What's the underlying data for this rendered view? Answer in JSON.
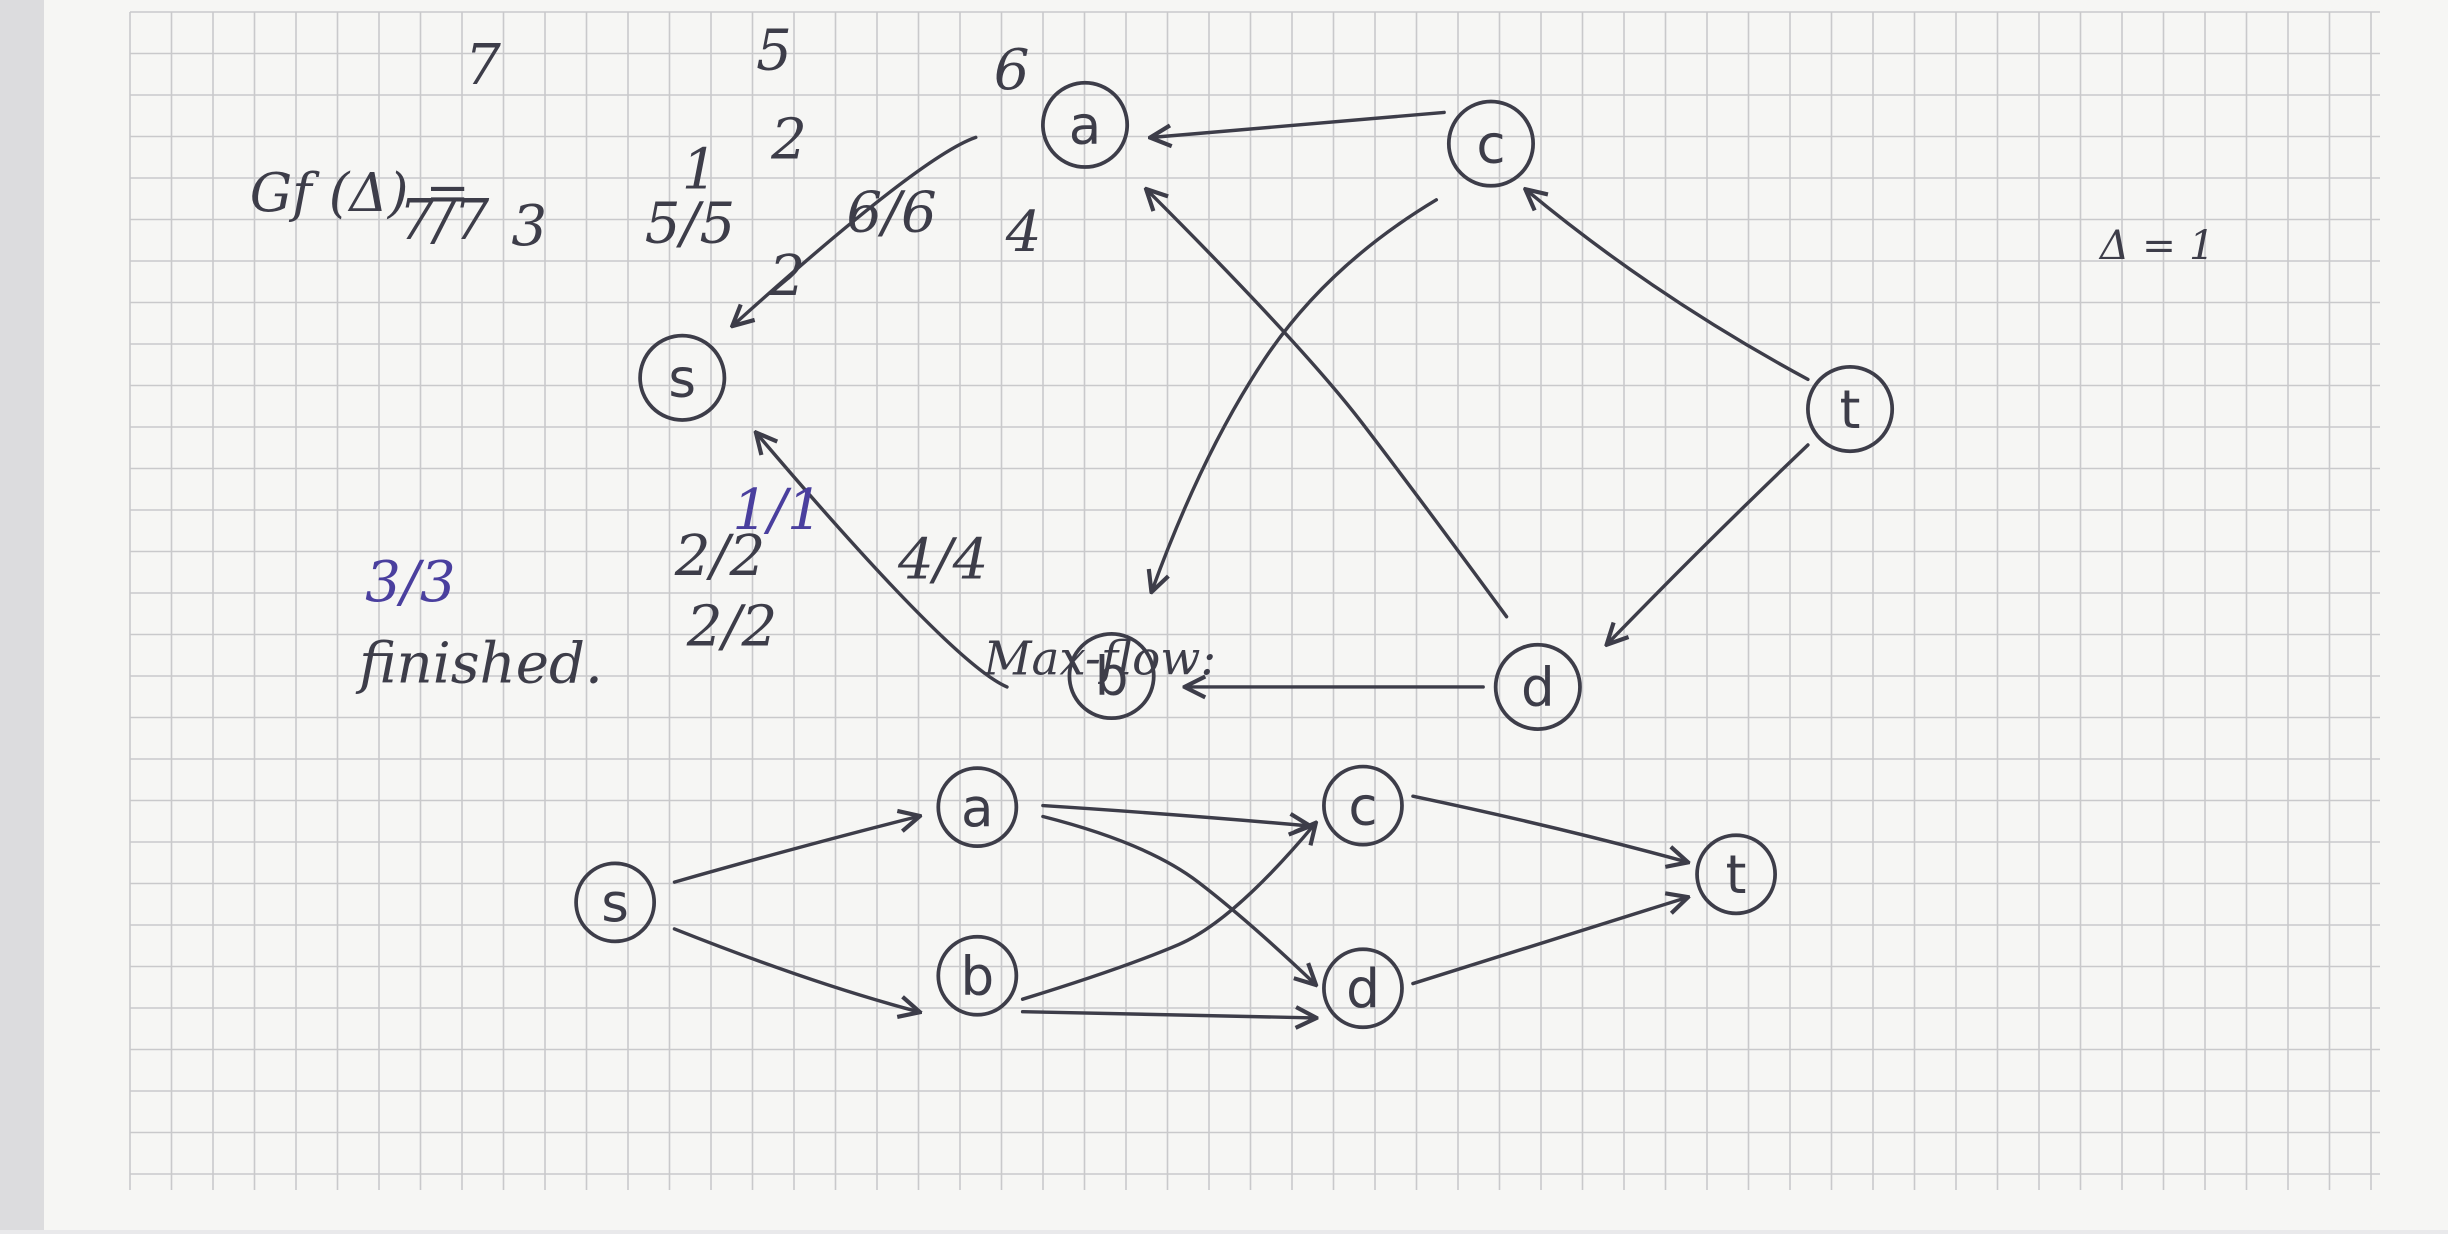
{
  "colors": {
    "paper": "#f6f6f4",
    "grid": "#c9c9cb",
    "ink": "#3d3d49",
    "blue_ink": "#4a3f9e",
    "shadow": "#dcdcde"
  },
  "residual_graph": {
    "label": "Gf (Δ) =",
    "delta_note": "Δ = 1",
    "nodes": [
      {
        "id": "s",
        "label": "s"
      },
      {
        "id": "a",
        "label": "a"
      },
      {
        "id": "b",
        "label": "b"
      },
      {
        "id": "c",
        "label": "c"
      },
      {
        "id": "d",
        "label": "d"
      },
      {
        "id": "t",
        "label": "t"
      }
    ],
    "edges": [
      {
        "from": "a",
        "to": "s",
        "label": "7"
      },
      {
        "from": "b",
        "to": "s",
        "label": "3"
      },
      {
        "from": "c",
        "to": "a",
        "label": "5"
      },
      {
        "from": "d",
        "to": "a",
        "label": "2"
      },
      {
        "from": "c",
        "to": "b",
        "label": "1"
      },
      {
        "from": "d",
        "to": "b",
        "label": "2"
      },
      {
        "from": "t",
        "to": "c",
        "label": "6"
      },
      {
        "from": "t",
        "to": "d",
        "label": "4"
      }
    ]
  },
  "finished_label": "finished.",
  "max_flow": {
    "label": "Max-flow:",
    "nodes": [
      {
        "id": "s",
        "label": "s"
      },
      {
        "id": "a",
        "label": "a"
      },
      {
        "id": "b",
        "label": "b"
      },
      {
        "id": "c",
        "label": "c"
      },
      {
        "id": "d",
        "label": "d"
      },
      {
        "id": "t",
        "label": "t"
      }
    ],
    "edges": [
      {
        "from": "s",
        "to": "a",
        "label": "7/7"
      },
      {
        "from": "s",
        "to": "b",
        "label": "3/3"
      },
      {
        "from": "a",
        "to": "c",
        "label": "5/5"
      },
      {
        "from": "a",
        "to": "d",
        "label": "2/2"
      },
      {
        "from": "b",
        "to": "c",
        "label": "1/1"
      },
      {
        "from": "b",
        "to": "d",
        "label": "2/2"
      },
      {
        "from": "c",
        "to": "t",
        "label": "6/6"
      },
      {
        "from": "d",
        "to": "t",
        "label": "4/4"
      }
    ]
  }
}
